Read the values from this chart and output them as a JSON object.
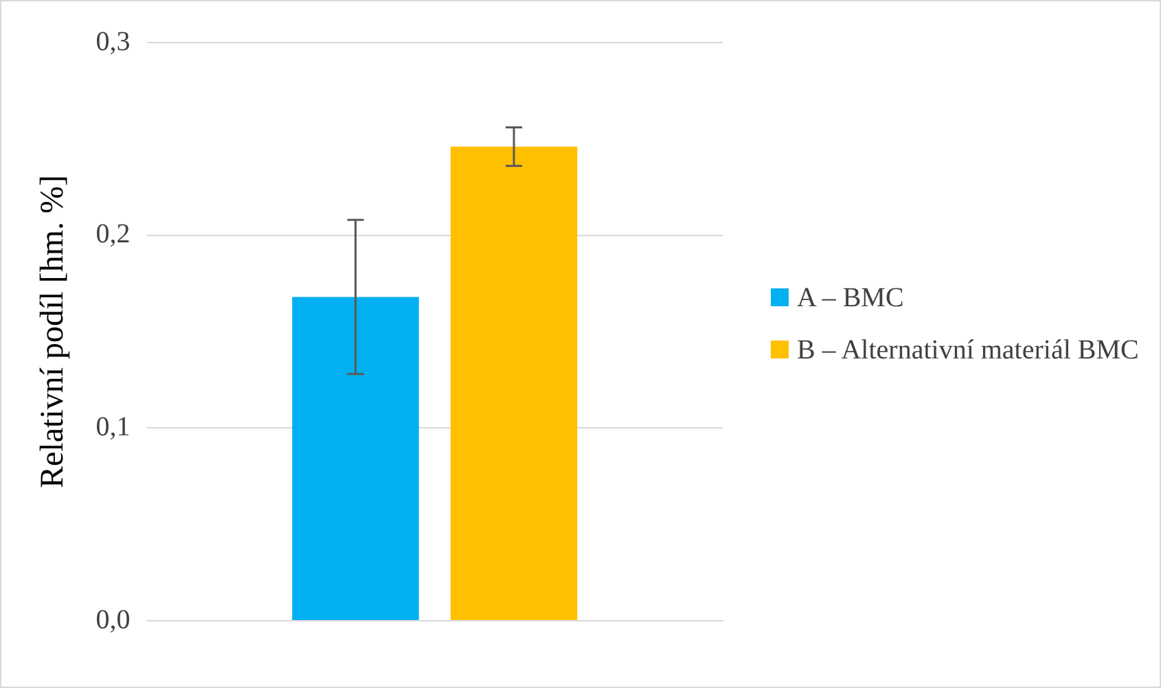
{
  "chart_data": {
    "type": "bar",
    "ylabel": "Relativní podíl [hm. %]",
    "categories": [
      null
    ],
    "series": [
      {
        "name": "A – BMC",
        "color": "#00b0f0",
        "values": [
          0.168
        ],
        "errors": [
          0.04
        ]
      },
      {
        "name": "B – Alternativní materiál BMC",
        "color": "#ffc000",
        "values": [
          0.246
        ],
        "errors": [
          0.01
        ]
      }
    ],
    "ylim": [
      0,
      0.3
    ],
    "yticks": [
      {
        "value": 0,
        "label": "0,0"
      },
      {
        "value": 0.1,
        "label": "0,1"
      },
      {
        "value": 0.2,
        "label": "0,2"
      },
      {
        "value": 0.3,
        "label": "0,3"
      }
    ],
    "grid": "y",
    "legend": "right"
  }
}
